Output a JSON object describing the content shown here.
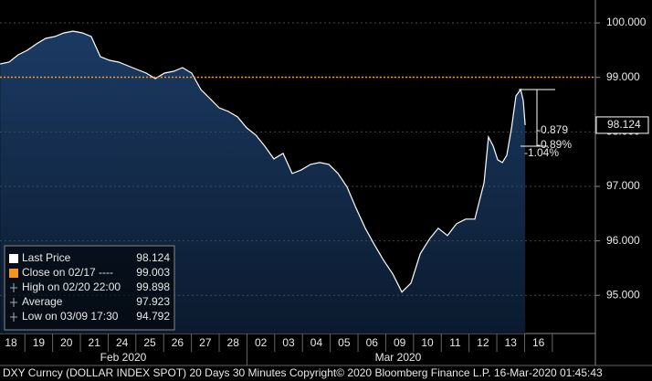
{
  "chart_data": {
    "type": "area",
    "ylim": [
      94.3,
      100.42
    ],
    "yticks": [
      {
        "value": 100,
        "label": "100.000"
      },
      {
        "value": 99,
        "label": "99.000"
      },
      {
        "value": 98,
        "label": "98.000"
      },
      {
        "value": 97,
        "label": "97.000"
      },
      {
        "value": 96,
        "label": "96.000"
      },
      {
        "value": 95,
        "label": "95.000"
      }
    ],
    "xlim": [
      -0.395,
      21.05
    ],
    "categories": [
      "18",
      "19",
      "20",
      "21",
      "24",
      "25",
      "26",
      "27",
      "28",
      "02",
      "03",
      "04",
      "05",
      "06",
      "09",
      "10",
      "11",
      "12",
      "13",
      "16"
    ],
    "months": [
      "Feb 2020",
      "Mar 2020"
    ],
    "grid": true,
    "series": [
      {
        "name": "Last Price",
        "color": "#ffffff",
        "x": [
          -0.39,
          -0.07,
          0.26,
          0.59,
          0.92,
          1.25,
          1.58,
          1.91,
          2.24,
          2.57,
          2.89,
          3.22,
          3.55,
          3.88,
          4.21,
          4.54,
          4.87,
          5.2,
          5.53,
          5.86,
          6.18,
          6.51,
          6.84,
          7.17,
          7.5,
          7.83,
          8.16,
          8.49,
          8.82,
          9.14,
          9.47,
          9.8,
          10.13,
          10.46,
          10.79,
          11.12,
          11.45,
          11.78,
          12.11,
          12.43,
          12.76,
          13.09,
          13.42,
          13.75,
          14.08,
          14.41,
          14.74,
          15.07,
          15.39,
          15.72,
          16.05,
          16.38,
          16.71,
          17.04,
          17.2,
          17.37,
          17.53,
          17.7,
          17.86,
          18.03,
          18.19,
          18.36,
          18.45,
          18.52
        ],
        "values": [
          99.246,
          99.28,
          99.414,
          99.497,
          99.615,
          99.715,
          99.749,
          99.816,
          99.849,
          99.816,
          99.749,
          99.38,
          99.313,
          99.28,
          99.213,
          99.146,
          99.079,
          98.978,
          99.079,
          99.112,
          99.179,
          99.079,
          98.777,
          98.61,
          98.442,
          98.375,
          98.275,
          98.074,
          97.94,
          97.739,
          97.504,
          97.605,
          97.236,
          97.303,
          97.404,
          97.437,
          97.404,
          97.236,
          96.985,
          96.6,
          96.231,
          95.93,
          95.645,
          95.394,
          95.059,
          95.226,
          95.762,
          96.03,
          96.231,
          96.097,
          96.315,
          96.399,
          96.399,
          97.069,
          97.906,
          97.739,
          97.487,
          97.437,
          97.571,
          98.074,
          98.66,
          98.777,
          98.576,
          98.124
        ]
      }
    ],
    "legend": [
      {
        "label": "Last Price",
        "value": 98.124,
        "color": "#ffffff"
      },
      {
        "label": "Close on 02/17 ----",
        "value": 99.003,
        "color": "#f7931e"
      },
      {
        "label": "High on 02/20 22:00",
        "value": 99.898
      },
      {
        "label": "Average",
        "value": 97.923
      },
      {
        "label": "Low on 03/09 17:30",
        "value": 94.792
      }
    ],
    "annotations": [
      "-0.879",
      "-0.89%",
      "-1.04%"
    ],
    "footer": "DXY Curncy (DOLLAR INDEX SPOT) 20 Days 30 Minutes Copyright© 2020 Bloomberg Finance L.P. 16-Mar-2020 01:45:43"
  }
}
